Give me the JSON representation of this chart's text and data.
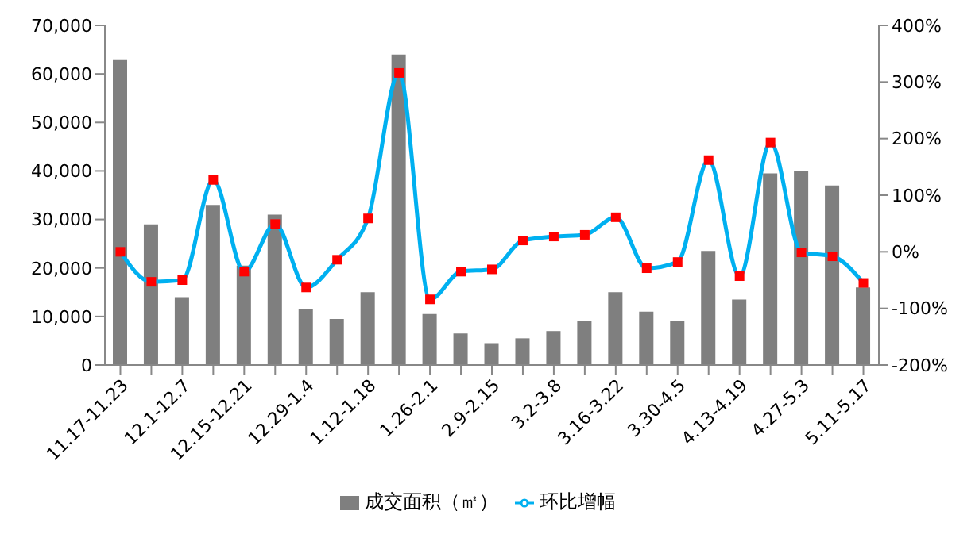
{
  "chart_data": {
    "type": "bar",
    "categories": [
      "11.17-11.23",
      null,
      "12.1-12.7",
      null,
      "12.15-12.21",
      null,
      "12.29-1.4",
      null,
      "1.12-1.18",
      null,
      "1.26-2.1",
      null,
      "2.9-2.15",
      null,
      "3.2-3.8",
      null,
      "3.16-3.22",
      null,
      "3.30-4.5",
      null,
      "4.13-4.19",
      null,
      "4.27-5.3",
      null,
      "5.11-5.17"
    ],
    "series": [
      {
        "name": "成交面积（㎡）",
        "color": "#7f7f7f",
        "values": [
          63000,
          29000,
          14000,
          33000,
          20500,
          31000,
          11500,
          9500,
          15000,
          64000,
          10500,
          6500,
          4500,
          5500,
          7000,
          9000,
          15000,
          11000,
          9000,
          23500,
          13500,
          39500,
          40000,
          37000,
          16000
        ]
      },
      {
        "name": "环比增幅",
        "type": "line",
        "axis": "y2",
        "color": "#00b0f0",
        "values": [
          0,
          -53,
          -50,
          127,
          -35,
          49,
          -63,
          -14,
          59,
          316,
          -84,
          -35,
          -31,
          20,
          27,
          30,
          61,
          -29,
          -18,
          162,
          -43,
          193,
          -1,
          -8,
          -55
        ]
      }
    ],
    "ylim": [
      0,
      70000
    ],
    "yticks": [
      0,
      {
        "value": 10000,
        "label": "10,000"
      },
      {
        "value": 20000,
        "label": "20,000"
      },
      {
        "value": 30000,
        "label": "30,000"
      },
      {
        "value": 40000,
        "label": "40,000"
      },
      {
        "value": 50000,
        "label": "50,000"
      },
      {
        "value": 60000,
        "label": "60,000"
      },
      {
        "value": 70000,
        "label": "70,000"
      }
    ],
    "y2lim": [
      -200,
      400
    ],
    "y2ticks": [
      {
        "value": -200,
        "label": "-200%"
      },
      {
        "value": -100,
        "label": "-100%"
      },
      {
        "value": 0,
        "label": "0%"
      },
      {
        "value": 100,
        "label": "100%"
      },
      {
        "value": 200,
        "label": "200%"
      },
      {
        "value": 300,
        "label": "300%"
      },
      {
        "value": 400,
        "label": "400%"
      }
    ],
    "legend": "bottom",
    "grid": false,
    "marker": "square"
  }
}
